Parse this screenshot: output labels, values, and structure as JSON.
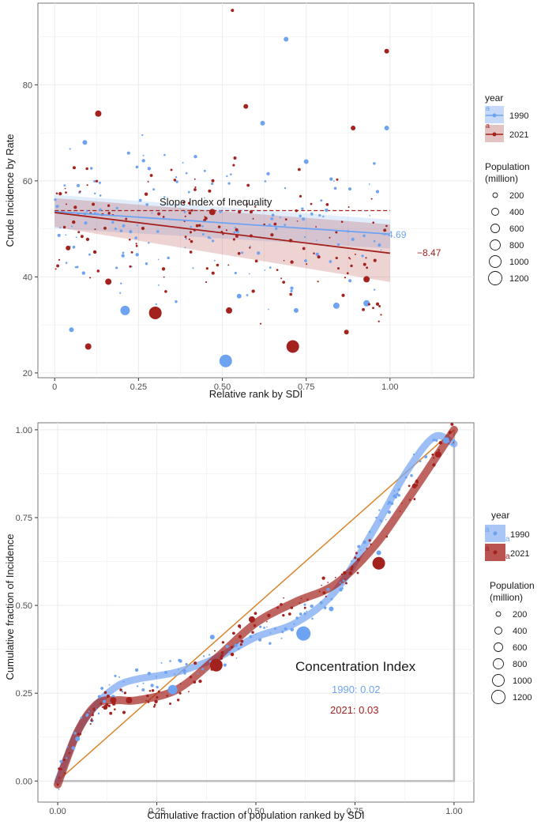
{
  "colors": {
    "c1990": "#6ea3f2",
    "c2021": "#a3221e",
    "diag": "#d9852b",
    "grid": "#ebebeb",
    "frame": "#555555",
    "gray": "#bdbdbd"
  },
  "chart_data": [
    {
      "type": "scatter",
      "title": "",
      "xlabel": "Relative rank by SDI",
      "ylabel": "Crude Incidence by Rate",
      "xlim": [
        -0.05,
        1.25
      ],
      "ylim": [
        19,
        97
      ],
      "xticks": [
        0,
        0.25,
        0.5,
        0.75,
        1.0
      ],
      "xtick_labels": [
        "0",
        "0.25",
        "0.50",
        "0.75",
        "1.00"
      ],
      "yticks": [
        20,
        40,
        60,
        80
      ],
      "ytick_labels": [
        "20",
        "40",
        "60",
        "80"
      ],
      "annotation": "Slope Index of Inequality",
      "dashed_ref_y": 53.8,
      "series": [
        {
          "name": "1990",
          "intercept": 53.6,
          "slope": -4.69,
          "slope_label": "−4.69",
          "ci_half_start": 3.5,
          "ci_half_end": 3.0,
          "points": [
            [
              0.21,
              33,
              6
            ],
            [
              0.51,
              22.5,
              8
            ],
            [
              0.69,
              89.5,
              3
            ],
            [
              0.31,
              32,
              3
            ],
            [
              0.84,
              34,
              4
            ],
            [
              0.09,
              68,
              3
            ],
            [
              0.93,
              34.5,
              4
            ],
            [
              0.99,
              71,
              3
            ],
            [
              0.55,
              36,
              3
            ],
            [
              0.72,
              33,
              3
            ],
            [
              0.05,
              29,
              3
            ],
            [
              0.62,
              72,
              3
            ],
            [
              0.75,
              64,
              3
            ]
          ]
        },
        {
          "name": "2021",
          "intercept": 53.4,
          "slope": -8.47,
          "slope_label": "−8.47",
          "ci_half_start": 3.0,
          "ci_half_end": 6.0,
          "points": [
            [
              0.3,
              32.5,
              8
            ],
            [
              0.71,
              25.5,
              8
            ],
            [
              0.1,
              25.5,
              4
            ],
            [
              0.93,
              39.5,
              4
            ],
            [
              0.13,
              74,
              4
            ],
            [
              0.53,
              95.5,
              2
            ],
            [
              0.57,
              75.5,
              3
            ],
            [
              0.99,
              87,
              3
            ],
            [
              0.47,
              53.5,
              4
            ],
            [
              0.87,
              28.5,
              3
            ],
            [
              0.16,
              39,
              4
            ],
            [
              0.52,
              33,
              4
            ],
            [
              0.04,
              46,
              3
            ],
            [
              0.89,
              71,
              3
            ]
          ]
        }
      ]
    },
    {
      "type": "line",
      "title": "",
      "xlabel": "Cumulative fraction of population ranked by SDI",
      "ylabel": "Cumulative fraction of Incidence",
      "xlim": [
        -0.05,
        1.05
      ],
      "ylim": [
        -0.06,
        1.02
      ],
      "xticks": [
        0,
        0.25,
        0.5,
        0.75,
        1.0
      ],
      "xtick_labels": [
        "0.00",
        "0.25",
        "0.50",
        "0.75",
        "1.00"
      ],
      "yticks": [
        0,
        0.25,
        0.5,
        0.75,
        1.0
      ],
      "ytick_labels": [
        "0.00",
        "0.25",
        "0.50",
        "0.75",
        "1.00"
      ],
      "annotation": "Concentration Index",
      "series": [
        {
          "name": "1990",
          "value_label": "1990: 0.02",
          "curve": [
            [
              0,
              0
            ],
            [
              0.05,
              0.14
            ],
            [
              0.1,
              0.22
            ],
            [
              0.15,
              0.27
            ],
            [
              0.2,
              0.29
            ],
            [
              0.3,
              0.31
            ],
            [
              0.4,
              0.35
            ],
            [
              0.5,
              0.41
            ],
            [
              0.6,
              0.45
            ],
            [
              0.7,
              0.54
            ],
            [
              0.8,
              0.72
            ],
            [
              0.88,
              0.88
            ],
            [
              0.95,
              0.98
            ],
            [
              1.0,
              0.96
            ]
          ],
          "points": [
            [
              0.29,
              0.26,
              6
            ],
            [
              0.62,
              0.42,
              9
            ],
            [
              0.39,
              0.41,
              3
            ],
            [
              0.05,
              0.12,
              3
            ],
            [
              0.98,
              0.97,
              4
            ],
            [
              0.81,
              0.65,
              3
            ],
            [
              0.69,
              0.49,
              3
            ]
          ]
        },
        {
          "name": "2021",
          "value_label": "2021: 0.03",
          "curve": [
            [
              0,
              -0.01
            ],
            [
              0.05,
              0.14
            ],
            [
              0.1,
              0.22
            ],
            [
              0.15,
              0.23
            ],
            [
              0.2,
              0.23
            ],
            [
              0.3,
              0.26
            ],
            [
              0.4,
              0.35
            ],
            [
              0.5,
              0.45
            ],
            [
              0.6,
              0.51
            ],
            [
              0.7,
              0.56
            ],
            [
              0.8,
              0.67
            ],
            [
              0.9,
              0.83
            ],
            [
              1.0,
              1.0
            ]
          ],
          "points": [
            [
              0.4,
              0.33,
              8
            ],
            [
              0.81,
              0.62,
              8
            ],
            [
              0.14,
              0.23,
              4
            ],
            [
              0.96,
              0.93,
              4
            ],
            [
              0.18,
              0.23,
              4
            ],
            [
              0.49,
              0.46,
              4
            ],
            [
              0.12,
              0.21,
              3
            ],
            [
              0.9,
              0.84,
              3
            ]
          ]
        }
      ]
    }
  ],
  "legends": [
    {
      "title": "year",
      "items": [
        "1990",
        "2021"
      ],
      "glyph": "a",
      "pop_title_1": "Population",
      "pop_title_2": "(million)",
      "pop_items": [
        "200",
        "400",
        "600",
        "800",
        "1000",
        "1200"
      ]
    },
    {
      "title": "year",
      "items": [
        "1990",
        "2021"
      ],
      "glyph": "a",
      "pop_title_1": "Population",
      "pop_title_2": "(million)",
      "pop_items": [
        "200",
        "400",
        "600",
        "800",
        "1000",
        "1200"
      ]
    }
  ]
}
